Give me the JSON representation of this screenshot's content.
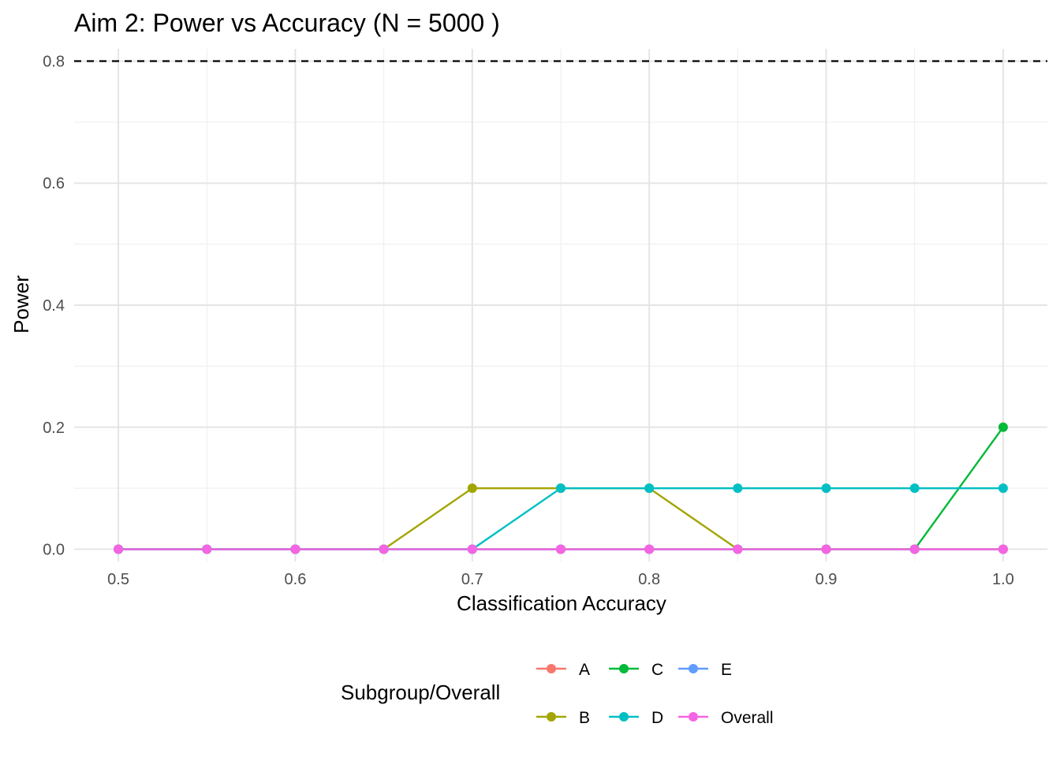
{
  "chart_data": {
    "type": "line",
    "title": "Aim 2: Power vs Accuracy (N = 5000 )",
    "xlabel": "Classification Accuracy",
    "ylabel": "Power",
    "xlim": [
      0.475,
      1.025
    ],
    "ylim": [
      -0.02,
      0.82
    ],
    "x_ticks": [
      0.5,
      0.6,
      0.7,
      0.8,
      0.9,
      1.0
    ],
    "x_tick_labels": [
      "0.5",
      "0.6",
      "0.7",
      "0.8",
      "0.9",
      "1.0"
    ],
    "y_ticks": [
      0.0,
      0.2,
      0.4,
      0.6,
      0.8
    ],
    "y_tick_labels": [
      "0.0",
      "0.2",
      "0.4",
      "0.6",
      "0.8"
    ],
    "grid": true,
    "reference_line": {
      "y": 0.8,
      "style": "dashed",
      "color": "#000000"
    },
    "x": [
      0.5,
      0.55,
      0.6,
      0.65,
      0.7,
      0.75,
      0.8,
      0.85,
      0.9,
      0.95,
      1.0
    ],
    "series": [
      {
        "name": "A",
        "color": "#F8766D",
        "values": [
          0,
          0,
          0,
          0,
          0,
          0,
          0,
          0,
          0,
          0,
          0
        ]
      },
      {
        "name": "B",
        "color": "#A3A500",
        "values": [
          0,
          0,
          0,
          0,
          0.1,
          0.1,
          0.1,
          0,
          0,
          0,
          0
        ]
      },
      {
        "name": "C",
        "color": "#00BA38",
        "values": [
          0,
          0,
          0,
          0,
          0,
          0,
          0,
          0,
          0,
          0,
          0.2
        ]
      },
      {
        "name": "D",
        "color": "#00BFC4",
        "values": [
          0,
          0,
          0,
          0,
          0,
          0.1,
          0.1,
          0.1,
          0.1,
          0.1,
          0.1
        ]
      },
      {
        "name": "E",
        "color": "#619CFF",
        "values": [
          0,
          0,
          0,
          0,
          0,
          0,
          0,
          0,
          0,
          0,
          0
        ]
      },
      {
        "name": "Overall",
        "color": "#F564E3",
        "values": [
          0,
          0,
          0,
          0,
          0,
          0,
          0,
          0,
          0,
          0,
          0
        ]
      }
    ],
    "legend": {
      "title": "Subgroup/Overall",
      "position": "bottom",
      "rows": [
        [
          "A",
          "C",
          "E"
        ],
        [
          "B",
          "D",
          "Overall"
        ]
      ]
    }
  }
}
